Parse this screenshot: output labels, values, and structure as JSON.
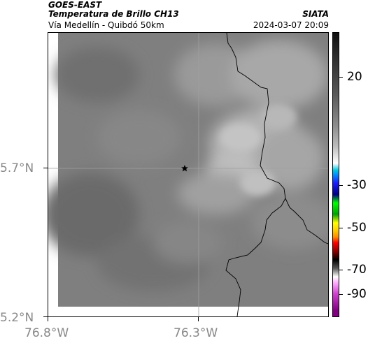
{
  "header": {
    "satellite": "GOES-EAST",
    "product": "Temperatura de Brillo CH13",
    "organization": "SIATA",
    "region": "Vía Medellín - Quibdó 50km",
    "timestamp": "2024-03-07 20:09"
  },
  "map": {
    "y_ticks": [
      "5.7°N",
      "5.2°N"
    ],
    "x_ticks": [
      "76.8°W",
      "76.3°W"
    ],
    "marker": "star-icon",
    "background_color": "#808080",
    "border_color": "#000000",
    "gridline_color": "#a0a0a0"
  },
  "colorbar": {
    "labels": [
      "20",
      "-30",
      "-50",
      "-70",
      "-90"
    ],
    "colors": [
      "#111111",
      "#8e8e8e",
      "#ffffff",
      "#00c6e0",
      "#1b1bff",
      "#00ff00",
      "#ffff00",
      "#ff8c00",
      "#ff0000",
      "#000000",
      "#ffffff",
      "#d040d0",
      "#800080"
    ]
  }
}
